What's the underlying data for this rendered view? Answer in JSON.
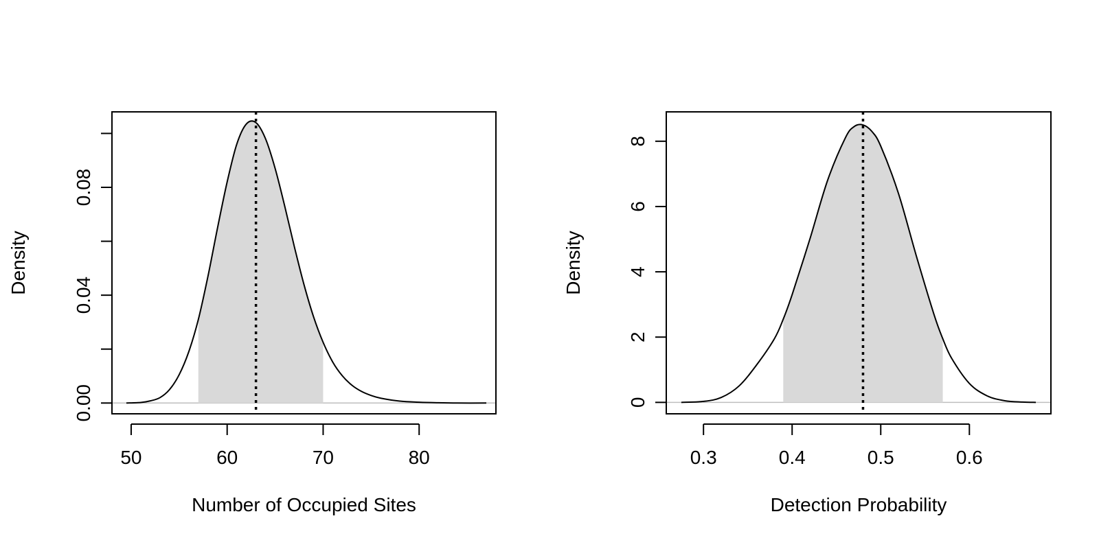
{
  "chart_data": [
    {
      "type": "area",
      "title": "",
      "xlabel": "Number of Occupied Sites",
      "ylabel": "Density",
      "xlim": [
        48,
        88
      ],
      "ylim": [
        -0.004,
        0.108
      ],
      "x_ticks": [
        50,
        60,
        70,
        80
      ],
      "x_tick_labels": [
        "50",
        "60",
        "70",
        "80"
      ],
      "y_ticks": [
        0.0,
        0.02,
        0.04,
        0.06,
        0.08,
        0.1
      ],
      "y_tick_labels": [
        "0.00",
        "",
        "0.04",
        "",
        "0.08",
        ""
      ],
      "curve": {
        "x": [
          49.5,
          51,
          52,
          53,
          54,
          55,
          56,
          57,
          58,
          59,
          60,
          61,
          62,
          63,
          64,
          65,
          66,
          67,
          68,
          69,
          70,
          71,
          72,
          73,
          74,
          75,
          76,
          78,
          80,
          82,
          84,
          87
        ],
        "y": [
          0.0,
          0.0002,
          0.0008,
          0.002,
          0.005,
          0.0105,
          0.019,
          0.031,
          0.047,
          0.065,
          0.082,
          0.096,
          0.1035,
          0.104,
          0.098,
          0.087,
          0.073,
          0.058,
          0.044,
          0.032,
          0.0225,
          0.0152,
          0.0101,
          0.0066,
          0.0043,
          0.0028,
          0.0018,
          0.0007,
          0.0003,
          0.0001,
          0.0,
          0.0
        ]
      },
      "shaded_interval": [
        57,
        70
      ],
      "reference_line": 63
    },
    {
      "type": "area",
      "title": "",
      "xlabel": "Detection Probability",
      "ylabel": "Density",
      "xlim": [
        0.258,
        0.692
      ],
      "ylim": [
        -0.35,
        8.9
      ],
      "x_ticks": [
        0.3,
        0.4,
        0.5,
        0.6
      ],
      "x_tick_labels": [
        "0.3",
        "0.4",
        "0.5",
        "0.6"
      ],
      "y_ticks": [
        0,
        2,
        4,
        6,
        8
      ],
      "y_tick_labels": [
        "0",
        "2",
        "4",
        "6",
        "8"
      ],
      "curve": {
        "x": [
          0.275,
          0.3,
          0.32,
          0.34,
          0.36,
          0.38,
          0.39,
          0.4,
          0.42,
          0.44,
          0.46,
          0.47,
          0.48,
          0.49,
          0.5,
          0.52,
          0.54,
          0.56,
          0.57,
          0.58,
          0.6,
          0.62,
          0.64,
          0.66,
          0.675
        ],
        "y": [
          0.0,
          0.03,
          0.15,
          0.5,
          1.15,
          1.95,
          2.55,
          3.3,
          5.0,
          6.8,
          8.1,
          8.45,
          8.5,
          8.3,
          7.85,
          6.4,
          4.5,
          2.7,
          1.95,
          1.35,
          0.58,
          0.2,
          0.05,
          0.01,
          0.0
        ]
      },
      "shaded_interval": [
        0.39,
        0.57
      ],
      "reference_line": 0.48
    }
  ]
}
